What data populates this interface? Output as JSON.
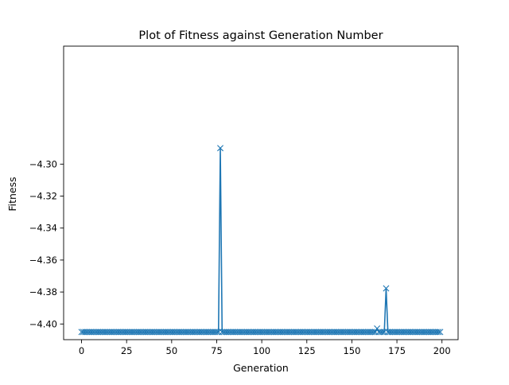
{
  "chart_data": {
    "type": "line",
    "title": "Plot of Fitness against Generation Number",
    "xlabel": "Generation",
    "ylabel": "Fitness",
    "xlim": [
      -9.95,
      208.95
    ],
    "ylim": [
      -4.4098,
      -4.2262
    ],
    "xticks": [
      0,
      25,
      50,
      75,
      100,
      125,
      150,
      175,
      200
    ],
    "xtick_labels": [
      "0",
      "25",
      "50",
      "75",
      "100",
      "125",
      "150",
      "175",
      "200"
    ],
    "yticks": [
      -4.4,
      -4.38,
      -4.36,
      -4.34,
      -4.32,
      -4.3
    ],
    "ytick_labels": [
      "−4.40",
      "−4.38",
      "−4.36",
      "−4.34",
      "−4.32",
      "−4.30"
    ],
    "grid": false,
    "marker": "x",
    "color": "#1f77b4",
    "baseline": -4.405,
    "x_range": [
      0,
      199
    ],
    "outliers": [
      {
        "x": 77,
        "y": -4.29
      },
      {
        "x": 164,
        "y": -4.4028
      },
      {
        "x": 169,
        "y": -4.3777
      }
    ]
  }
}
